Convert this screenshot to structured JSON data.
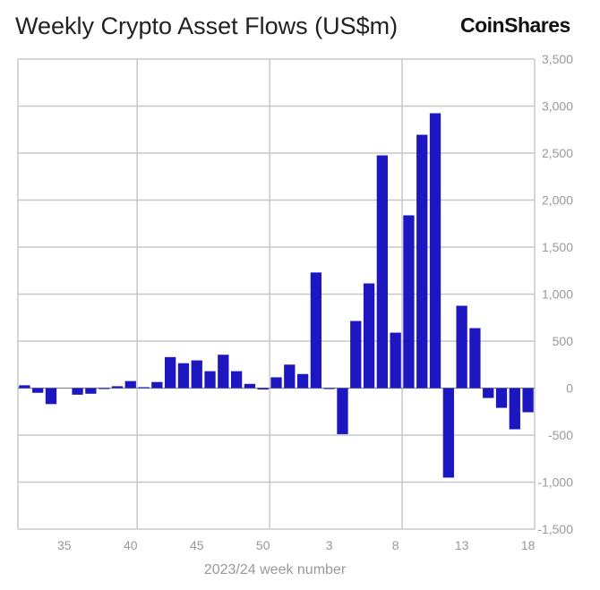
{
  "chart_data": {
    "type": "bar",
    "title": "Weekly Crypto Asset Flows (US$m)",
    "xlabel": "2023/24 week number",
    "ylabel": "",
    "ylim": [
      -1500,
      3500
    ],
    "yticks": [
      3500,
      3000,
      2500,
      2000,
      1500,
      1000,
      500,
      0,
      -500,
      -1000,
      -1500
    ],
    "ytick_labels": [
      "3,500",
      "3,000",
      "2,500",
      "2,000",
      "1,500",
      "1,000",
      "500",
      "0",
      "-500",
      "-1,000",
      "-1,500"
    ],
    "y_axis_side": "right",
    "grid": true,
    "categories": [
      "32",
      "33",
      "34",
      "35",
      "36",
      "37",
      "38",
      "39",
      "40",
      "41",
      "42",
      "43",
      "44",
      "45",
      "46",
      "47",
      "48",
      "49",
      "50",
      "51",
      "52",
      "1",
      "2",
      "3",
      "4",
      "5",
      "6",
      "7",
      "8",
      "9",
      "10",
      "11",
      "12",
      "13",
      "14",
      "15",
      "16",
      "17",
      "18"
    ],
    "xtick_labels": [
      "35",
      "40",
      "45",
      "50",
      "3",
      "8",
      "13",
      "18"
    ],
    "values": [
      30,
      -50,
      -170,
      0,
      -70,
      -60,
      -10,
      20,
      75,
      10,
      65,
      330,
      265,
      295,
      180,
      355,
      180,
      45,
      -15,
      115,
      250,
      150,
      1230,
      -10,
      -490,
      714,
      1114,
      2476,
      590,
      1838,
      2695,
      2924,
      -952,
      876,
      638,
      -105,
      -210,
      -438,
      -257
    ],
    "bar_color": "#1c17c0",
    "grid_color": "#c8c8c8"
  },
  "brand": {
    "logo_text": "CoinShares"
  }
}
